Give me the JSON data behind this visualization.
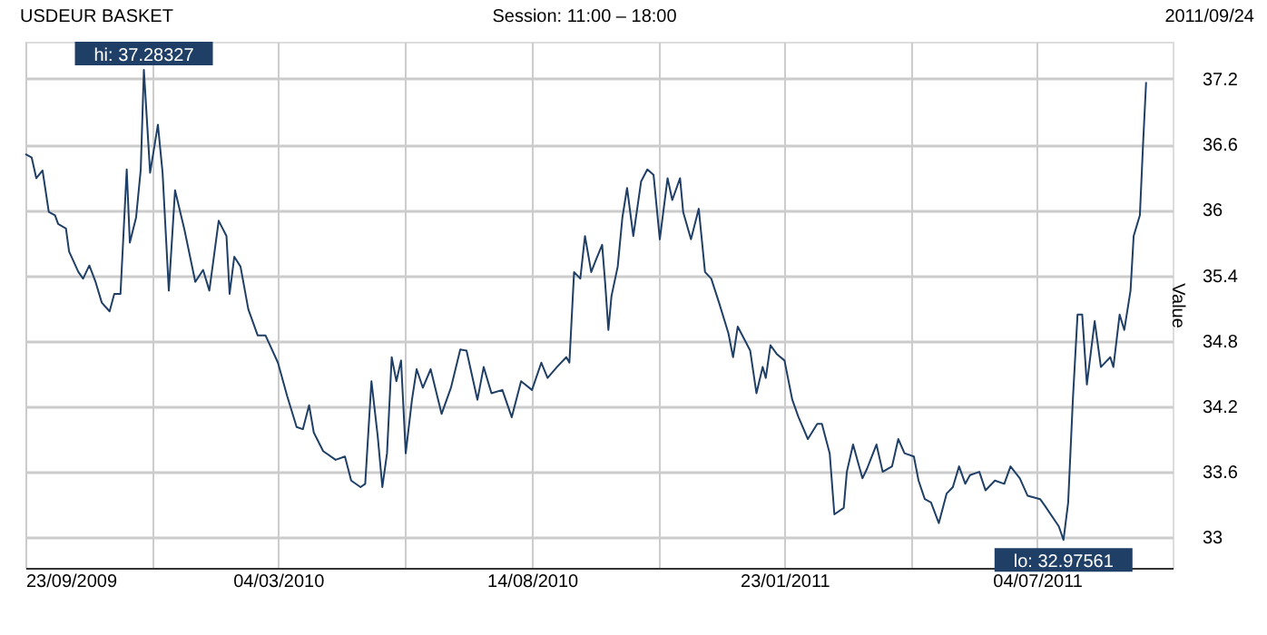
{
  "chart_data": {
    "type": "line",
    "title": "USDEUR BASKET",
    "subtitle": "Session: 11:00 – 18:00",
    "ylabel": "Value",
    "annotations": [
      "2011/09/24",
      {
        "text": "hi: 37.28327",
        "x": "2009-12-08",
        "y": 37.28327
      },
      {
        "text": "lo: 32.97561",
        "x": "2011-07-21",
        "y": 32.97561
      }
    ],
    "x": [
      "2009-09-23",
      "2009-09-27",
      "2009-09-30",
      "2009-10-04",
      "2009-10-08",
      "2009-10-12",
      "2009-10-14",
      "2009-10-19",
      "2009-10-21",
      "2009-10-27",
      "2009-10-30",
      "2009-11-03",
      "2009-11-07",
      "2009-11-11",
      "2009-11-16",
      "2009-11-19",
      "2009-11-23",
      "2009-11-27",
      "2009-11-29",
      "2009-12-03",
      "2009-12-06",
      "2009-12-08",
      "2009-12-12",
      "2009-12-17",
      "2009-12-20",
      "2009-12-24",
      "2009-12-28",
      "2010-01-03",
      "2010-01-10",
      "2010-01-15",
      "2010-01-19",
      "2010-01-25",
      "2010-01-30",
      "2010-02-01",
      "2010-02-04",
      "2010-02-08",
      "2010-02-13",
      "2010-02-19",
      "2010-02-24",
      "2010-03-04",
      "2010-03-10",
      "2010-03-16",
      "2010-03-20",
      "2010-03-24",
      "2010-03-27",
      "2010-04-02",
      "2010-04-10",
      "2010-04-16",
      "2010-04-20",
      "2010-04-26",
      "2010-04-29",
      "2010-05-03",
      "2010-05-07",
      "2010-05-10",
      "2010-05-13",
      "2010-05-16",
      "2010-05-19",
      "2010-05-22",
      "2010-05-25",
      "2010-05-29",
      "2010-06-01",
      "2010-06-05",
      "2010-06-10",
      "2010-06-17",
      "2010-06-23",
      "2010-06-29",
      "2010-07-03",
      "2010-07-10",
      "2010-07-14",
      "2010-07-19",
      "2010-07-26",
      "2010-08-01",
      "2010-08-07",
      "2010-08-14",
      "2010-08-20",
      "2010-08-24",
      "2010-08-30",
      "2010-09-05",
      "2010-09-07",
      "2010-09-10",
      "2010-09-14",
      "2010-09-17",
      "2010-09-21",
      "2010-09-24",
      "2010-09-28",
      "2010-09-30",
      "2010-10-02",
      "2010-10-04",
      "2010-10-08",
      "2010-10-11",
      "2010-10-14",
      "2010-10-18",
      "2010-10-23",
      "2010-10-27",
      "2010-10-31",
      "2010-11-04",
      "2010-11-09",
      "2010-11-12",
      "2010-11-17",
      "2010-11-19",
      "2010-11-24",
      "2010-11-29",
      "2010-12-03",
      "2010-12-07",
      "2010-12-12",
      "2010-12-18",
      "2010-12-21",
      "2010-12-24",
      "2011-01-01",
      "2011-01-05",
      "2011-01-09",
      "2011-01-11",
      "2011-01-14",
      "2011-01-18",
      "2011-01-23",
      "2011-01-28",
      "2011-02-01",
      "2011-02-07",
      "2011-02-13",
      "2011-02-16",
      "2011-02-21",
      "2011-02-24",
      "2011-03-02",
      "2011-03-04",
      "2011-03-08",
      "2011-03-14",
      "2011-03-17",
      "2011-03-23",
      "2011-03-27",
      "2011-04-02",
      "2011-04-06",
      "2011-04-10",
      "2011-04-16",
      "2011-04-19",
      "2011-04-23",
      "2011-04-27",
      "2011-05-02",
      "2011-05-07",
      "2011-05-11",
      "2011-05-15",
      "2011-05-19",
      "2011-05-22",
      "2011-05-28",
      "2011-06-01",
      "2011-06-07",
      "2011-06-13",
      "2011-06-17",
      "2011-06-23",
      "2011-06-28",
      "2011-07-06",
      "2011-07-09",
      "2011-07-18",
      "2011-07-21",
      "2011-07-24",
      "2011-07-27",
      "2011-07-30",
      "2011-08-02",
      "2011-08-05",
      "2011-08-10",
      "2011-08-14",
      "2011-08-20",
      "2011-08-22",
      "2011-08-26",
      "2011-08-29",
      "2011-09-02",
      "2011-09-04",
      "2011-09-08",
      "2011-09-10",
      "2011-09-12"
    ],
    "series": [
      {
        "color": "#1f3f66",
        "values": [
          36.51,
          36.48,
          36.29,
          36.36,
          35.98,
          35.95,
          35.87,
          35.83,
          35.62,
          35.43,
          35.37,
          35.49,
          35.34,
          35.15,
          35.07,
          35.23,
          35.23,
          36.37,
          35.7,
          35.93,
          36.37,
          37.28327,
          36.34,
          36.78,
          36.34,
          35.26,
          36.18,
          35.82,
          35.34,
          35.45,
          35.26,
          35.9,
          35.76,
          35.23,
          35.57,
          35.48,
          35.09,
          34.85,
          34.85,
          34.6,
          34.29,
          34.01,
          33.99,
          34.21,
          33.96,
          33.79,
          33.71,
          33.74,
          33.52,
          33.46,
          33.49,
          34.43,
          33.93,
          33.46,
          33.77,
          34.65,
          34.43,
          34.62,
          33.77,
          34.26,
          34.54,
          34.37,
          34.54,
          34.13,
          34.37,
          34.72,
          34.71,
          34.26,
          34.56,
          34.32,
          34.35,
          34.1,
          34.43,
          34.35,
          34.6,
          34.46,
          34.56,
          34.65,
          34.6,
          35.43,
          35.37,
          35.76,
          35.43,
          35.54,
          35.68,
          35.32,
          34.9,
          35.21,
          35.48,
          35.93,
          36.2,
          35.76,
          36.26,
          36.37,
          36.32,
          35.73,
          36.29,
          36.09,
          36.29,
          35.98,
          35.73,
          36.01,
          35.43,
          35.37,
          35.15,
          34.87,
          34.65,
          34.93,
          34.71,
          34.32,
          34.56,
          34.46,
          34.76,
          34.68,
          34.62,
          34.26,
          34.1,
          33.9,
          34.04,
          34.04,
          33.77,
          33.21,
          33.27,
          33.6,
          33.85,
          33.54,
          33.63,
          33.85,
          33.6,
          33.65,
          33.9,
          33.77,
          33.74,
          33.52,
          33.35,
          33.32,
          33.13,
          33.4,
          33.46,
          33.65,
          33.49,
          33.57,
          33.6,
          33.43,
          33.52,
          33.49,
          33.65,
          33.54,
          33.38,
          33.35,
          33.29,
          33.1,
          32.97561,
          33.32,
          34.26,
          35.04,
          35.04,
          34.4,
          34.98,
          34.56,
          34.65,
          34.56,
          35.04,
          34.9,
          35.26,
          35.76,
          35.95,
          36.59,
          37.17
        ]
      }
    ],
    "xlim": [
      "2009-09-23",
      "2011-09-29"
    ],
    "xticks": [
      {
        "value": "2009-09-23",
        "label": "23/09/2009"
      },
      {
        "value": "2009-12-13",
        "label": null
      },
      {
        "value": "2010-03-04",
        "label": "04/03/2010"
      },
      {
        "value": "2010-05-24",
        "label": null
      },
      {
        "value": "2010-08-14",
        "label": "14/08/2010"
      },
      {
        "value": "2010-11-03",
        "label": null
      },
      {
        "value": "2011-01-23",
        "label": "23/01/2011"
      },
      {
        "value": "2011-04-14",
        "label": null
      },
      {
        "value": "2011-07-04",
        "label": "04/07/2011"
      }
    ],
    "ylim": [
      32.72,
      37.54
    ],
    "yticks": [
      33,
      33.6,
      34.2,
      34.8,
      35.4,
      36,
      36.6,
      37.2
    ],
    "grid": true,
    "marker": "none",
    "line_style": "solid"
  }
}
